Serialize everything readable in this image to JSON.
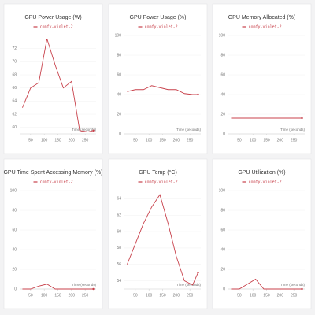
{
  "chart_data": [
    {
      "type": "line",
      "title": "GPU Power Usage (W)",
      "x_label": "Time (seconds)",
      "x": [
        20,
        50,
        80,
        110,
        140,
        170,
        200,
        230,
        260,
        280
      ],
      "xlim": [
        10,
        290
      ],
      "xticks": [
        50,
        100,
        150,
        200,
        250
      ],
      "ylim": [
        59,
        74
      ],
      "yticks": [
        60,
        62,
        64,
        66,
        68,
        70,
        72
      ],
      "series": [
        {
          "name": "comfy-violet-2",
          "color": "#c8414b",
          "values": [
            63,
            66,
            66.8,
            73.5,
            69.5,
            66,
            67,
            59.5,
            59.3,
            59.5
          ]
        }
      ]
    },
    {
      "type": "line",
      "title": "GPU Power Usage (%)",
      "x_label": "Time (seconds)",
      "x": [
        20,
        50,
        80,
        110,
        140,
        170,
        200,
        230,
        260,
        280
      ],
      "xlim": [
        10,
        290
      ],
      "xticks": [
        50,
        100,
        150,
        200,
        250
      ],
      "ylim": [
        0,
        100
      ],
      "yticks": [
        0,
        20,
        40,
        60,
        80,
        100
      ],
      "series": [
        {
          "name": "comfy-violet-2",
          "color": "#c8414b",
          "values": [
            43,
            45,
            45,
            49,
            47,
            45,
            45,
            41,
            40,
            40
          ]
        }
      ]
    },
    {
      "type": "line",
      "title": "GPU Memory Allocated (%)",
      "x_label": "Time (seconds)",
      "x": [
        20,
        50,
        80,
        110,
        140,
        170,
        200,
        230,
        260,
        280
      ],
      "xlim": [
        10,
        290
      ],
      "xticks": [
        50,
        100,
        150,
        200,
        250
      ],
      "ylim": [
        0,
        100
      ],
      "yticks": [
        0,
        20,
        40,
        60,
        80,
        100
      ],
      "series": [
        {
          "name": "comfy-violet-2",
          "color": "#c8414b",
          "values": [
            16,
            16,
            16,
            16,
            16,
            16,
            16,
            16,
            16,
            16
          ]
        }
      ]
    },
    {
      "type": "line",
      "title": "GPU Time Spent Accessing Memory (%)",
      "x_label": "Time (seconds)",
      "x": [
        20,
        50,
        80,
        110,
        140,
        170,
        200,
        230,
        260,
        280
      ],
      "xlim": [
        10,
        290
      ],
      "xticks": [
        50,
        100,
        150,
        200,
        250
      ],
      "ylim": [
        0,
        100
      ],
      "yticks": [
        0,
        20,
        40,
        60,
        80,
        100
      ],
      "series": [
        {
          "name": "comfy-violet-2",
          "color": "#c8414b",
          "values": [
            0,
            0,
            3,
            5,
            0,
            0,
            0,
            0,
            0,
            0
          ]
        }
      ]
    },
    {
      "type": "line",
      "title": "GPU Temp (°C)",
      "x_label": "Time (seconds)",
      "x": [
        20,
        50,
        80,
        110,
        140,
        170,
        200,
        230,
        260,
        280
      ],
      "xlim": [
        10,
        290
      ],
      "xticks": [
        50,
        100,
        150,
        200,
        250
      ],
      "ylim": [
        53,
        65
      ],
      "yticks": [
        54,
        56,
        58,
        60,
        62,
        64
      ],
      "series": [
        {
          "name": "comfy-violet-2",
          "color": "#c8414b",
          "values": [
            56,
            58.5,
            61,
            63,
            64.5,
            61,
            57,
            54,
            53.5,
            55
          ]
        }
      ]
    },
    {
      "type": "line",
      "title": "GPU Utilization (%)",
      "x_label": "Time (seconds)",
      "x": [
        20,
        50,
        80,
        110,
        140,
        170,
        200,
        230,
        260,
        280
      ],
      "xlim": [
        10,
        290
      ],
      "xticks": [
        50,
        100,
        150,
        200,
        250
      ],
      "ylim": [
        0,
        100
      ],
      "yticks": [
        0,
        20,
        40,
        60,
        80,
        100
      ],
      "series": [
        {
          "name": "comfy-violet-2",
          "color": "#c8414b",
          "values": [
            0,
            0,
            5,
            10,
            0,
            0,
            0,
            0,
            0,
            0
          ]
        }
      ]
    }
  ]
}
